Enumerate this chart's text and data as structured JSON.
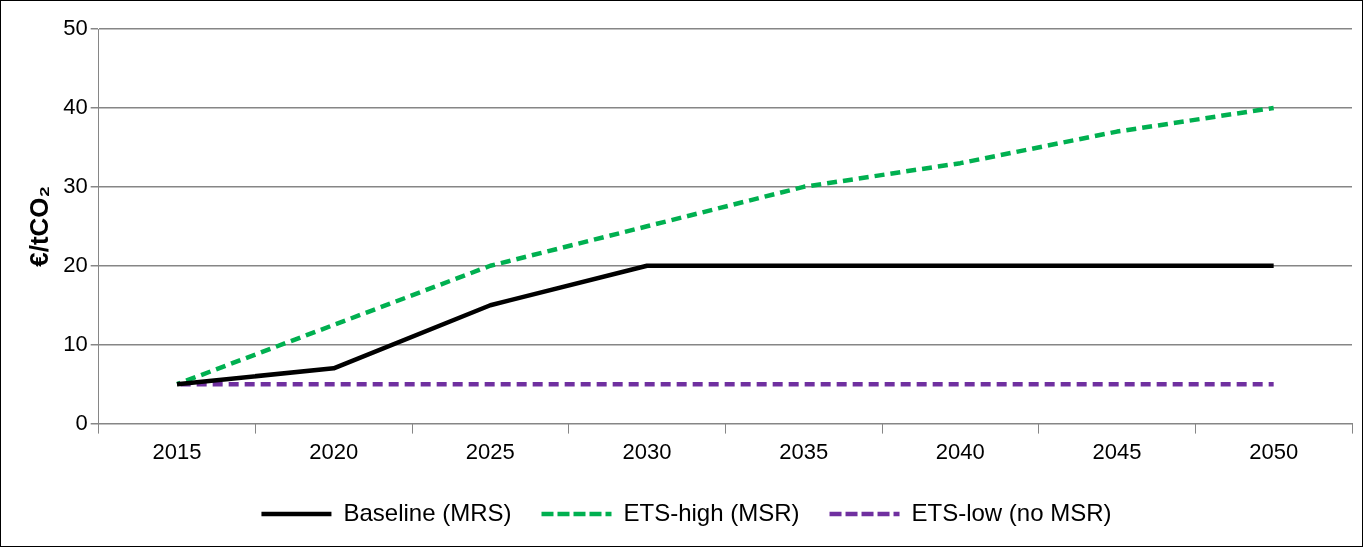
{
  "chart_data": {
    "type": "line",
    "ylabel": "€/tCO₂",
    "categories": [
      "2015",
      "2020",
      "2025",
      "2030",
      "2035",
      "2040",
      "2045",
      "2050"
    ],
    "series": [
      {
        "name": "Baseline (MRS)",
        "color": "#000000",
        "values": [
          5,
          7,
          15,
          20,
          20,
          20,
          20,
          20
        ],
        "line_style": "solid"
      },
      {
        "name": "ETS-high (MSR)",
        "color": "#00b050",
        "values": [
          5,
          12.5,
          20,
          25,
          30,
          33,
          37,
          40
        ],
        "line_style": "dashed"
      },
      {
        "name": "ETS-low (no MSR)",
        "color": "#7030a0",
        "values": [
          5,
          5,
          5,
          5,
          5,
          5,
          5,
          5
        ],
        "line_style": "dashed"
      }
    ],
    "ylim": [
      0,
      50
    ],
    "yticks": [
      0,
      10,
      20,
      30,
      40,
      50
    ],
    "grid": "y",
    "legend": "bottom",
    "marker": "none"
  }
}
